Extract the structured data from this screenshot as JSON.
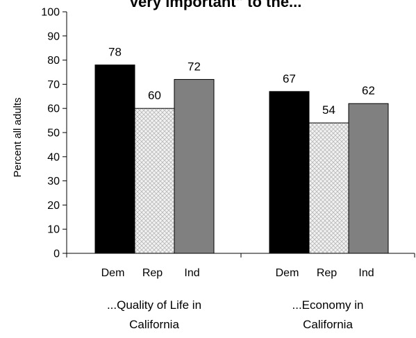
{
  "chart_data": {
    "type": "bar",
    "title": "Very important\" to the...",
    "ylabel": "Percent all adults",
    "xlabel": "",
    "ylim": [
      0,
      100
    ],
    "yticks": [
      "0",
      "10",
      "20",
      "30",
      "40",
      "50",
      "60",
      "70",
      "80",
      "90",
      "100"
    ],
    "grid": false,
    "categories": [
      "Dem",
      "Rep",
      "Ind"
    ],
    "groups": [
      {
        "label_line1": "...Quality of Life in",
        "label_line2": "California",
        "values": [
          78,
          60,
          72
        ]
      },
      {
        "label_line1": "...Economy in",
        "label_line2": "California",
        "values": [
          67,
          54,
          62
        ]
      }
    ],
    "colors": {
      "Dem": "#000000",
      "Rep": "#e6e6e6",
      "Ind": "#808080"
    }
  }
}
